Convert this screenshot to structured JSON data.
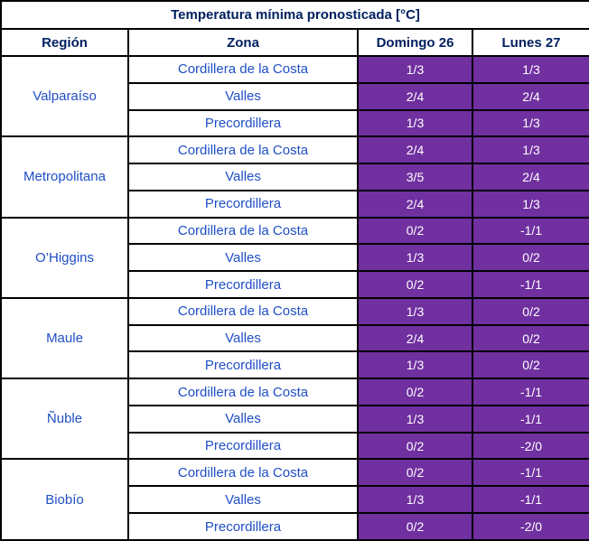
{
  "title": "Temperatura mínima pronosticada [°C]",
  "columns": [
    "Región",
    "Zona",
    "Domingo 26",
    "Lunes 27"
  ],
  "regions": [
    {
      "name": "Valparaíso",
      "zones": [
        {
          "zone": "Cordillera de la Costa",
          "domingo": "1/3",
          "lunes": "1/3"
        },
        {
          "zone": "Valles",
          "domingo": "2/4",
          "lunes": "2/4"
        },
        {
          "zone": "Precordillera",
          "domingo": "1/3",
          "lunes": "1/3"
        }
      ]
    },
    {
      "name": "Metropolitana",
      "zones": [
        {
          "zone": "Cordillera de la Costa",
          "domingo": "2/4",
          "lunes": "1/3"
        },
        {
          "zone": "Valles",
          "domingo": "3/5",
          "lunes": "2/4"
        },
        {
          "zone": "Precordillera",
          "domingo": "2/4",
          "lunes": "1/3"
        }
      ]
    },
    {
      "name": "O’Higgins",
      "zones": [
        {
          "zone": "Cordillera de la Costa",
          "domingo": "0/2",
          "lunes": "-1/1"
        },
        {
          "zone": "Valles",
          "domingo": "1/3",
          "lunes": "0/2"
        },
        {
          "zone": "Precordillera",
          "domingo": "0/2",
          "lunes": "-1/1"
        }
      ]
    },
    {
      "name": "Maule",
      "zones": [
        {
          "zone": "Cordillera de la Costa",
          "domingo": "1/3",
          "lunes": "0/2"
        },
        {
          "zone": "Valles",
          "domingo": "2/4",
          "lunes": "0/2"
        },
        {
          "zone": "Precordillera",
          "domingo": "1/3",
          "lunes": "0/2"
        }
      ]
    },
    {
      "name": "Ñuble",
      "zones": [
        {
          "zone": "Cordillera de la Costa",
          "domingo": "0/2",
          "lunes": "-1/1"
        },
        {
          "zone": "Valles",
          "domingo": "1/3",
          "lunes": "-1/1"
        },
        {
          "zone": "Precordillera",
          "domingo": "0/2",
          "lunes": "-2/0"
        }
      ]
    },
    {
      "name": "Biobío",
      "zones": [
        {
          "zone": "Cordillera de la Costa",
          "domingo": "0/2",
          "lunes": "-1/1"
        },
        {
          "zone": "Valles",
          "domingo": "1/3",
          "lunes": "-1/1"
        },
        {
          "zone": "Precordillera",
          "domingo": "0/2",
          "lunes": "-2/0"
        }
      ]
    }
  ],
  "colors": {
    "value_cell_bg": "#7030A0",
    "value_text": "#FFFFFF",
    "title_text": "#002060",
    "header_text": "#002060",
    "body_text": "#1F4FC5",
    "border": "#000000",
    "page_bg": "#FFFFFF"
  }
}
